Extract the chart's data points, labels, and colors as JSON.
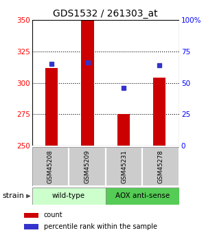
{
  "title": "GDS1532 / 261303_at",
  "samples": [
    "GSM45208",
    "GSM45209",
    "GSM45231",
    "GSM45278"
  ],
  "count_values": [
    312,
    350,
    275,
    304
  ],
  "percentile_values": [
    65,
    66,
    46,
    64
  ],
  "ymin": 250,
  "ymax": 350,
  "yticks": [
    250,
    275,
    300,
    325,
    350
  ],
  "pct_ticks": [
    0,
    25,
    50,
    75,
    100
  ],
  "pct_tick_labels": [
    "0",
    "25",
    "50",
    "75",
    "100%"
  ],
  "bar_color": "#cc0000",
  "dot_color": "#3333cc",
  "group1_label": "wild-type",
  "group2_label": "AOX anti-sense",
  "group1_color": "#ccffcc",
  "group2_color": "#55cc55",
  "sample_box_color": "#cccccc",
  "strain_label": "strain",
  "legend_count_label": "count",
  "legend_pct_label": "percentile rank within the sample",
  "title_fontsize": 10,
  "tick_fontsize": 7.5,
  "sample_fontsize": 6.5,
  "group_fontsize": 7.5,
  "legend_fontsize": 7
}
